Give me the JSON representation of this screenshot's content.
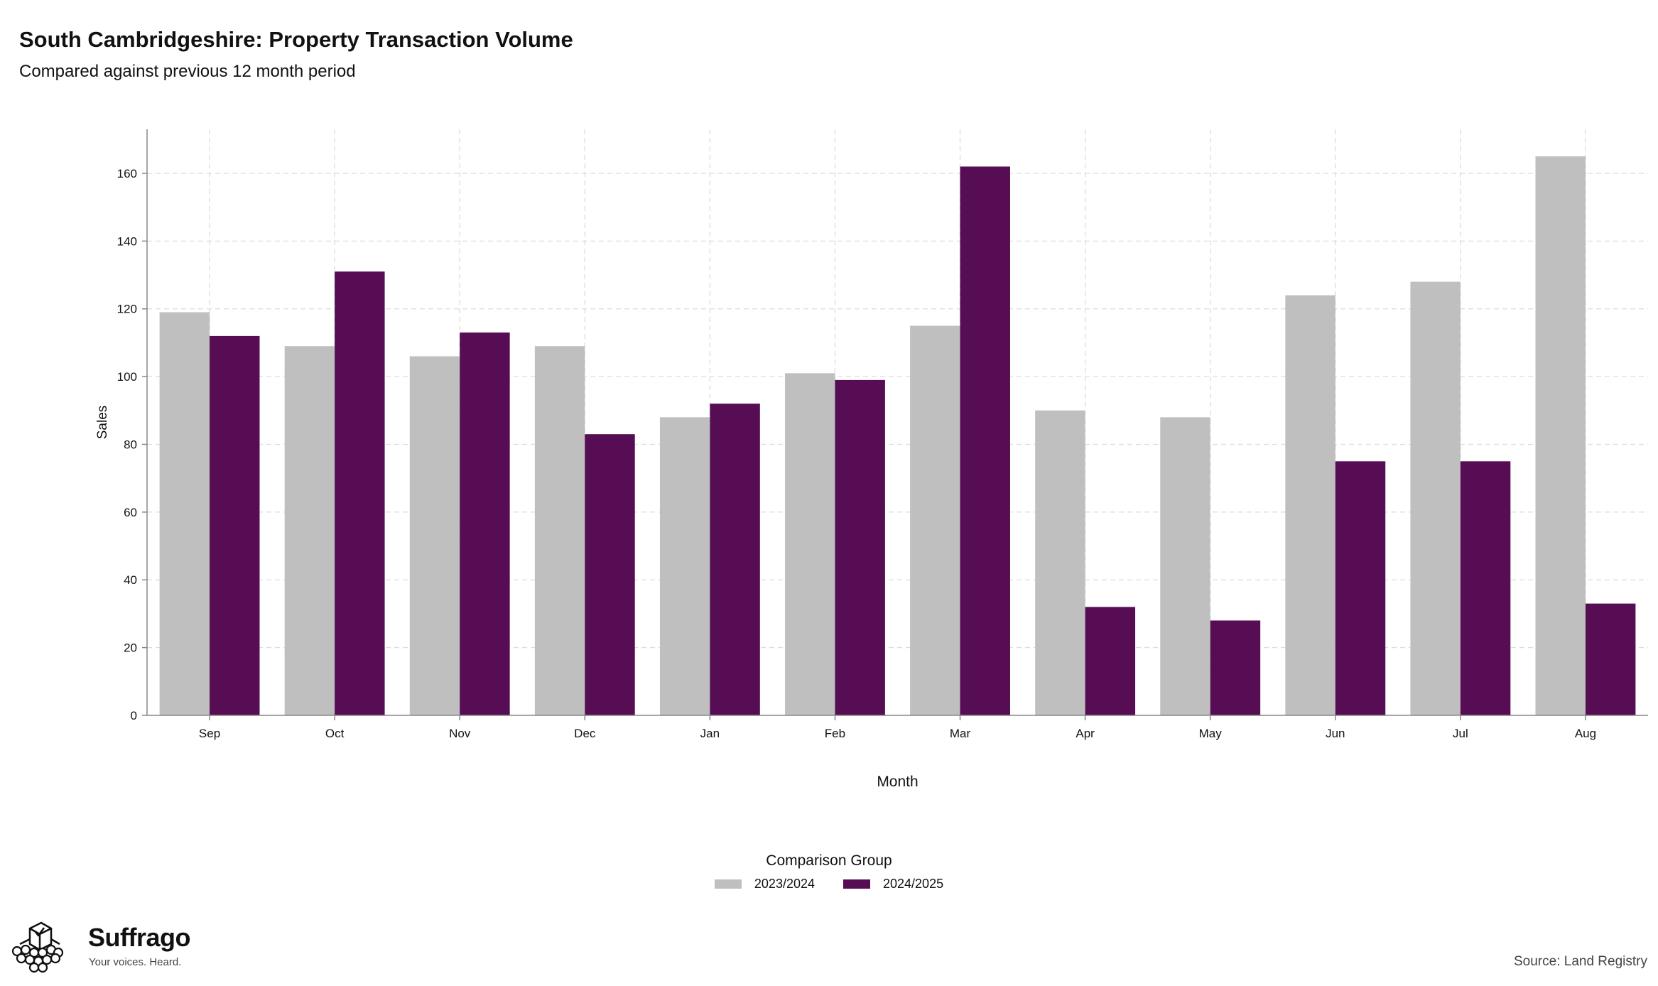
{
  "header": {
    "title": "South Cambridgeshire: Property Transaction Volume",
    "subtitle": "Compared against previous 12 month period"
  },
  "chart_data": {
    "type": "bar",
    "title": "South Cambridgeshire: Property Transaction Volume",
    "subtitle": "Compared against previous 12 month period",
    "xlabel": "Month",
    "ylabel": "Sales",
    "categories": [
      "Sep",
      "Oct",
      "Nov",
      "Dec",
      "Jan",
      "Feb",
      "Mar",
      "Apr",
      "May",
      "Jun",
      "Jul",
      "Aug"
    ],
    "series": [
      {
        "name": "2023/2024",
        "color": "#bfbfbf",
        "values": [
          119,
          109,
          106,
          109,
          88,
          101,
          115,
          90,
          88,
          124,
          128,
          165
        ]
      },
      {
        "name": "2024/2025",
        "color": "#570d53",
        "values": [
          112,
          131,
          113,
          83,
          92,
          99,
          162,
          32,
          28,
          75,
          75,
          33
        ]
      }
    ],
    "yticks": [
      0,
      20,
      40,
      60,
      80,
      100,
      120,
      140,
      160
    ],
    "ylim": [
      0,
      173
    ],
    "grid": true,
    "legend_title": "Comparison Group",
    "legend_position": "bottom"
  },
  "legend": {
    "title": "Comparison Group",
    "items": [
      {
        "label": "2023/2024",
        "color": "#bfbfbf"
      },
      {
        "label": "2024/2025",
        "color": "#570d53"
      }
    ]
  },
  "branding": {
    "name": "Suffrago",
    "tagline": "Your voices. Heard.",
    "icon": "ballot-box-icon"
  },
  "footer": {
    "source": "Source: Land Registry"
  }
}
